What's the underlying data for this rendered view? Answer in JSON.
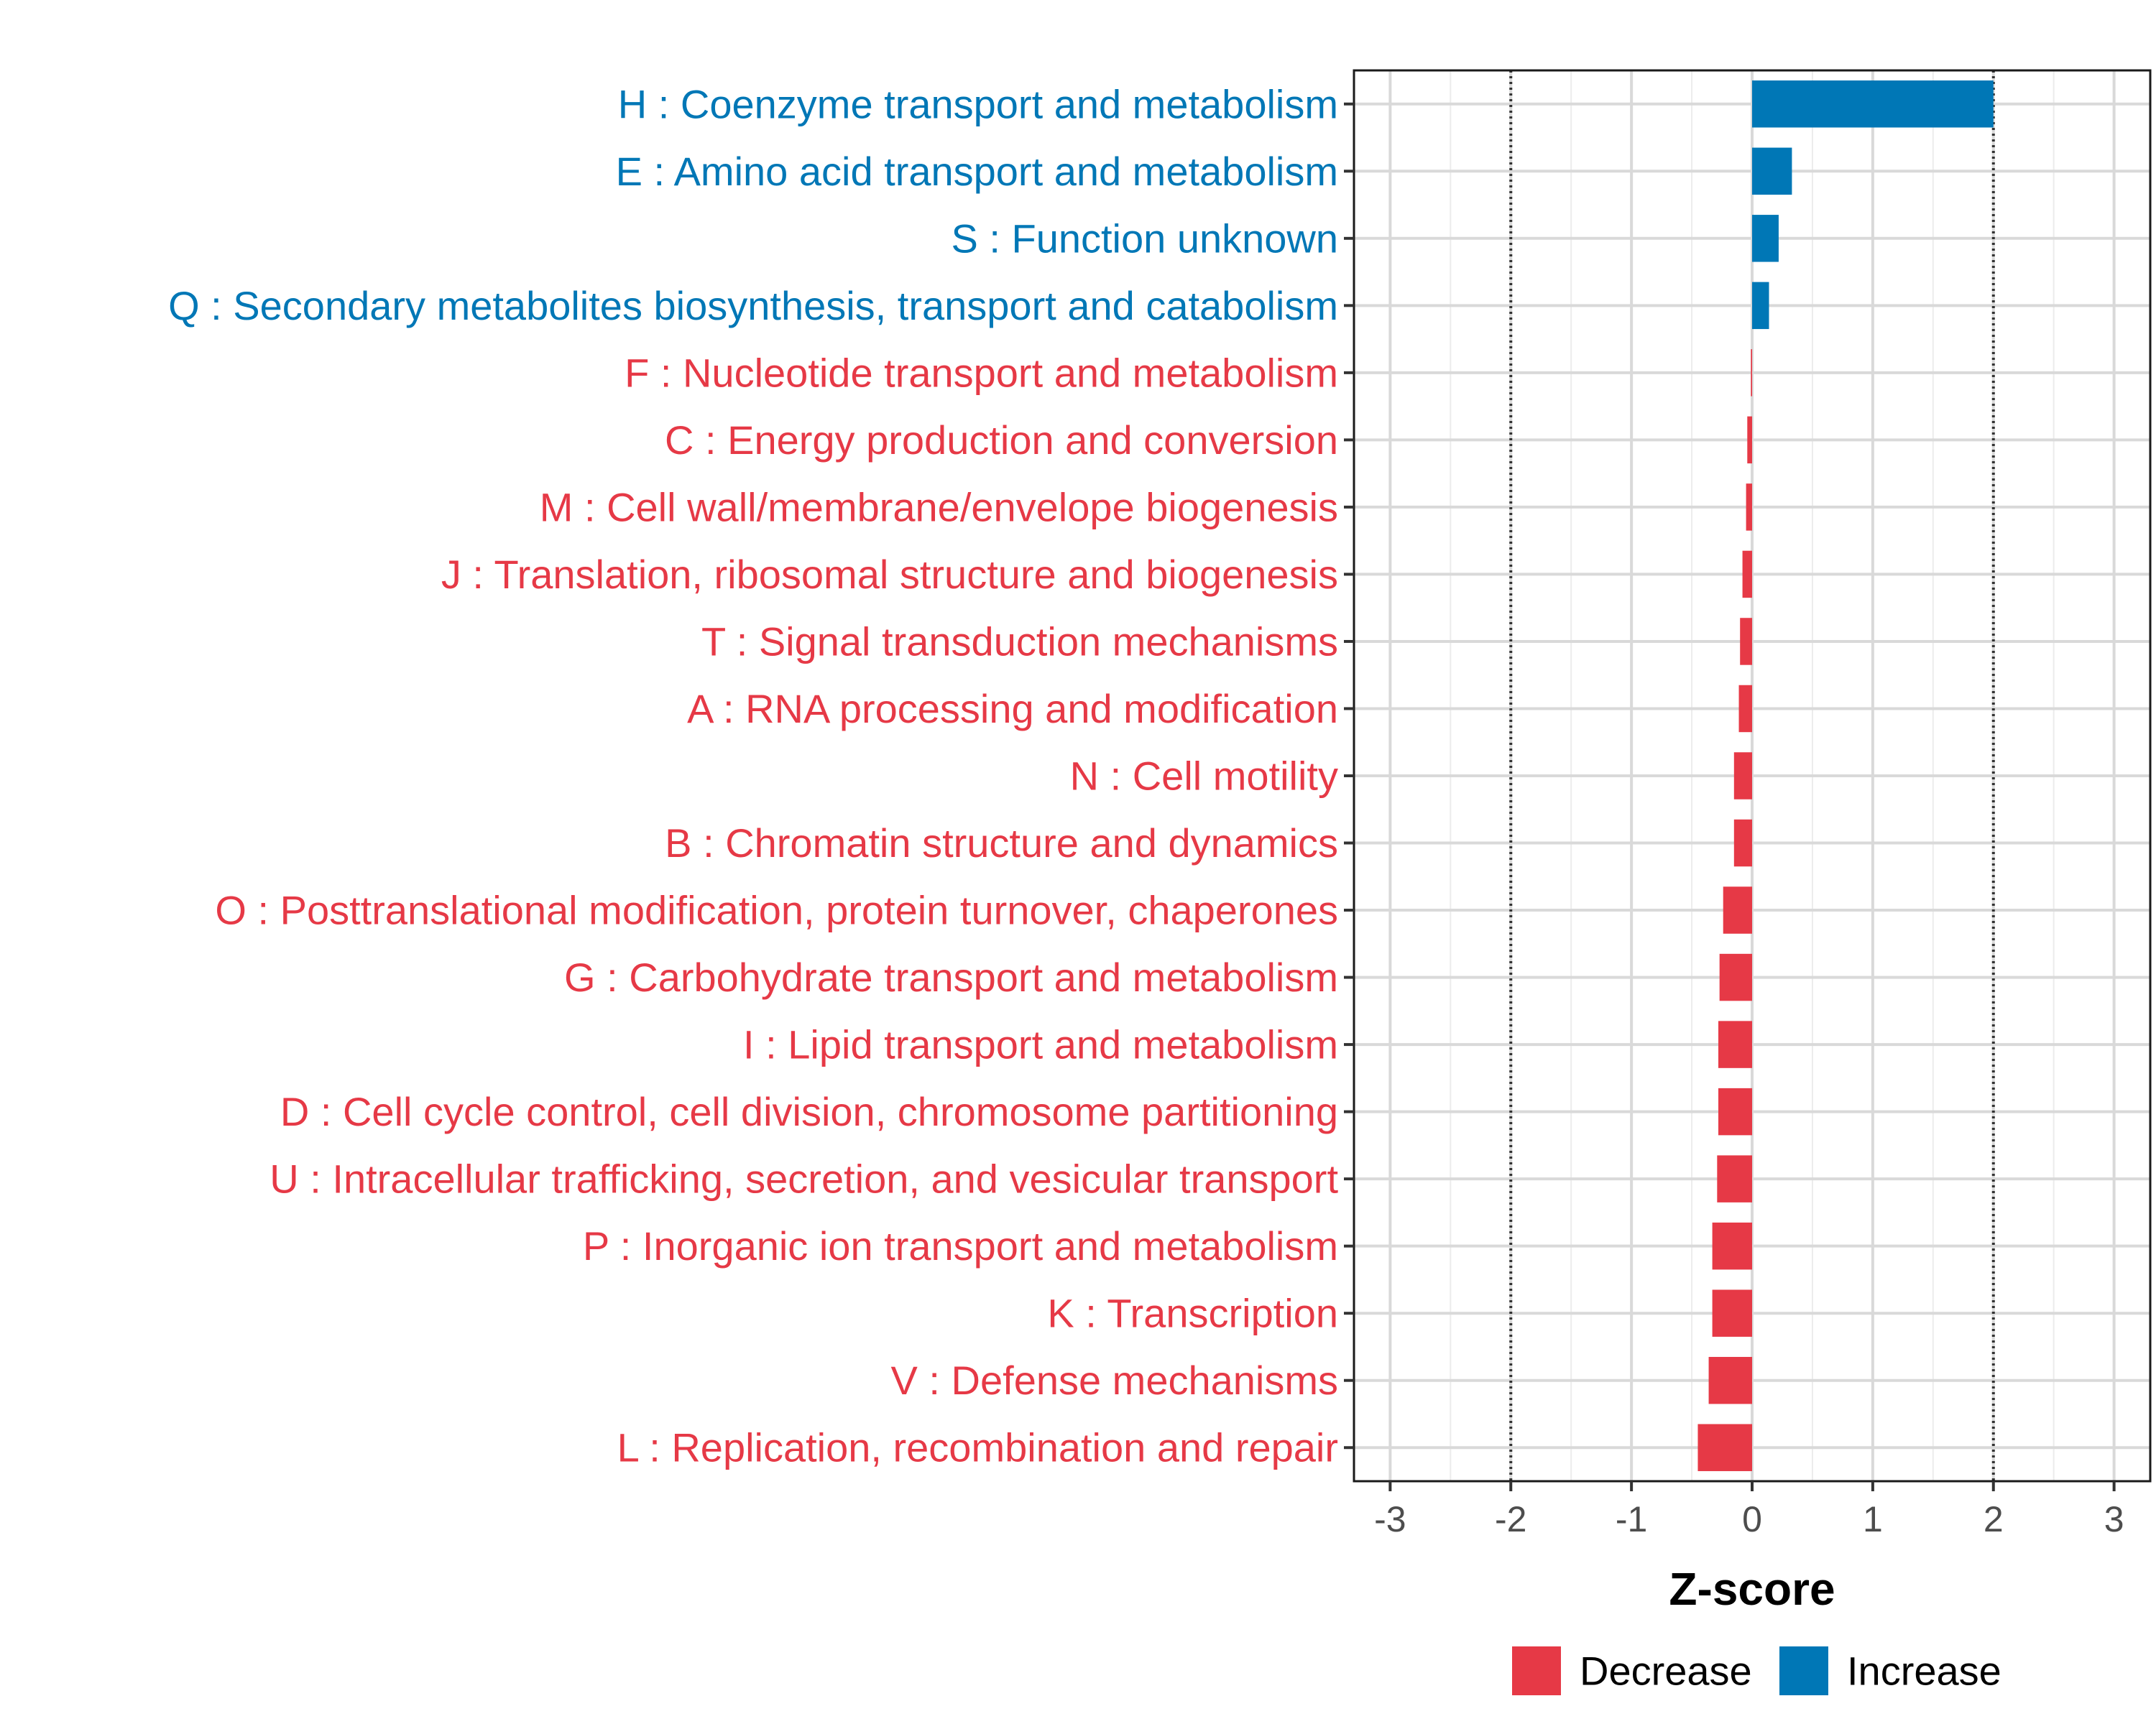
{
  "chart_data": {
    "type": "bar",
    "orientation": "horizontal",
    "xlabel": "Z-score",
    "xlim": [
      -3.3,
      3.3
    ],
    "xticks": [
      -3,
      -2,
      -1,
      0,
      1,
      2,
      3
    ],
    "xtick_labels": [
      "-3",
      "-2",
      "-1",
      "0",
      "1",
      "2",
      "3"
    ],
    "reference_lines": [
      -2,
      2
    ],
    "grid": true,
    "legend_position": "bottom",
    "colors": {
      "Decrease": "#E63946",
      "Increase": "#0077B6"
    },
    "legend": [
      {
        "label": "Decrease",
        "color": "#E63946"
      },
      {
        "label": "Increase",
        "color": "#0077B6"
      }
    ],
    "categories": [
      "H : Coenzyme transport and metabolism",
      "E : Amino acid transport and metabolism",
      "S : Function unknown",
      "Q : Secondary metabolites biosynthesis, transport and catabolism",
      "F : Nucleotide transport and metabolism",
      "C : Energy production and conversion",
      "M : Cell wall/membrane/envelope biogenesis",
      "J : Translation, ribosomal structure and biogenesis",
      "T : Signal transduction mechanisms",
      "A : RNA processing and modification",
      "N : Cell motility",
      "B : Chromatin structure and dynamics",
      "O : Posttranslational modification, protein turnover, chaperones",
      "G : Carbohydrate transport and metabolism",
      "I : Lipid transport and metabolism",
      "D : Cell cycle control, cell division, chromosome partitioning",
      "U : Intracellular trafficking, secretion, and vesicular transport",
      "P : Inorganic ion transport and metabolism",
      "K : Transcription",
      "V : Defense mechanisms",
      "L : Replication, recombination and repair"
    ],
    "values": [
      2.0,
      0.33,
      0.22,
      0.14,
      -0.01,
      -0.04,
      -0.05,
      -0.08,
      -0.1,
      -0.11,
      -0.15,
      -0.15,
      -0.24,
      -0.27,
      -0.28,
      -0.28,
      -0.29,
      -0.33,
      -0.33,
      -0.36,
      -0.45
    ],
    "direction": [
      "Increase",
      "Increase",
      "Increase",
      "Increase",
      "Decrease",
      "Decrease",
      "Decrease",
      "Decrease",
      "Decrease",
      "Decrease",
      "Decrease",
      "Decrease",
      "Decrease",
      "Decrease",
      "Decrease",
      "Decrease",
      "Decrease",
      "Decrease",
      "Decrease",
      "Decrease",
      "Decrease"
    ]
  }
}
